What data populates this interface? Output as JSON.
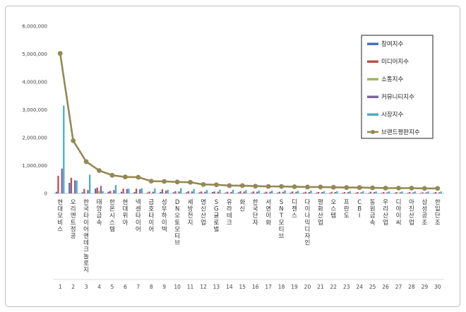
{
  "chart_data": {
    "type": "bar",
    "title": "",
    "xlabel": "",
    "ylabel": "",
    "ylim": [
      0,
      6000000
    ],
    "yticks": [
      "0",
      "1,000,000",
      "2,000,000",
      "3,000,000",
      "4,000,000",
      "5,000,000",
      "6,000,000"
    ],
    "ytick_values": [
      0,
      1000000,
      2000000,
      3000000,
      4000000,
      5000000,
      6000000
    ],
    "grid": false,
    "legend_position": "top-right",
    "categories": [
      "현대모비스",
      "오리엔트정공",
      "한국타이어앤테크놀로지",
      "태양금속",
      "한온시스템",
      "현대위아",
      "넥센타이어",
      "금호타이어",
      "성우하이텍",
      "DN오토모티브",
      "세방전지",
      "명신산업",
      "SG글로벌",
      "유라테크",
      "화신",
      "한국단자",
      "서연이화",
      "SNT모티브",
      "디젠스",
      "다이나믹디자인",
      "평화산업",
      "오스템",
      "프란도",
      "CBI",
      "동원금속",
      "우리산업",
      "디아이씨",
      "아진산업",
      "삼성공조",
      "한일단조"
    ],
    "ranks": [
      "1",
      "2",
      "3",
      "4",
      "5",
      "6",
      "7",
      "8",
      "9",
      "10",
      "11",
      "12",
      "13",
      "14",
      "15",
      "16",
      "17",
      "18",
      "19",
      "20",
      "21",
      "22",
      "23",
      "24",
      "25",
      "26",
      "27",
      "28",
      "29",
      "30"
    ],
    "series": [
      {
        "name": "참여지수",
        "type": "bar",
        "color": "#4472c4",
        "values": [
          60000,
          380000,
          40000,
          170000,
          60000,
          60000,
          50000,
          30000,
          50000,
          40000,
          40000,
          40000,
          50000,
          30000,
          40000,
          30000,
          30000,
          30000,
          30000,
          30000,
          30000,
          20000,
          20000,
          20000,
          20000,
          20000,
          20000,
          20000,
          20000,
          20000
        ]
      },
      {
        "name": "미디어지수",
        "type": "bar",
        "color": "#c0504d",
        "values": [
          630000,
          560000,
          160000,
          210000,
          90000,
          170000,
          170000,
          70000,
          150000,
          80000,
          80000,
          70000,
          70000,
          60000,
          80000,
          70000,
          60000,
          60000,
          70000,
          60000,
          50000,
          60000,
          50000,
          50000,
          60000,
          50000,
          50000,
          50000,
          40000,
          50000
        ]
      },
      {
        "name": "소통지수",
        "type": "bar",
        "color": "#9bbb59",
        "values": [
          10000,
          10000,
          10000,
          90000,
          10000,
          10000,
          10000,
          10000,
          10000,
          10000,
          10000,
          10000,
          10000,
          10000,
          10000,
          10000,
          10000,
          10000,
          10000,
          10000,
          10000,
          10000,
          10000,
          10000,
          10000,
          10000,
          10000,
          10000,
          10000,
          10000
        ]
      },
      {
        "name": "커뮤니티지수",
        "type": "bar",
        "color": "#8064a2",
        "values": [
          890000,
          470000,
          120000,
          270000,
          120000,
          160000,
          150000,
          60000,
          100000,
          70000,
          70000,
          60000,
          60000,
          50000,
          70000,
          60000,
          60000,
          60000,
          60000,
          50000,
          50000,
          50000,
          50000,
          40000,
          50000,
          40000,
          40000,
          40000,
          40000,
          40000
        ]
      },
      {
        "name": "시장지수",
        "type": "bar",
        "color": "#4bacc6",
        "values": [
          3150000,
          460000,
          670000,
          80000,
          300000,
          170000,
          190000,
          180000,
          130000,
          190000,
          160000,
          120000,
          130000,
          130000,
          120000,
          100000,
          100000,
          110000,
          90000,
          100000,
          80000,
          80000,
          80000,
          80000,
          70000,
          70000,
          70000,
          70000,
          70000,
          70000
        ]
      },
      {
        "name": "브랜드평판지수",
        "type": "line",
        "color": "#938953",
        "values": [
          5020000,
          1890000,
          1140000,
          820000,
          650000,
          590000,
          580000,
          440000,
          430000,
          410000,
          400000,
          320000,
          310000,
          280000,
          280000,
          260000,
          250000,
          250000,
          240000,
          230000,
          230000,
          220000,
          210000,
          210000,
          200000,
          190000,
          190000,
          190000,
          180000,
          180000
        ]
      }
    ]
  }
}
